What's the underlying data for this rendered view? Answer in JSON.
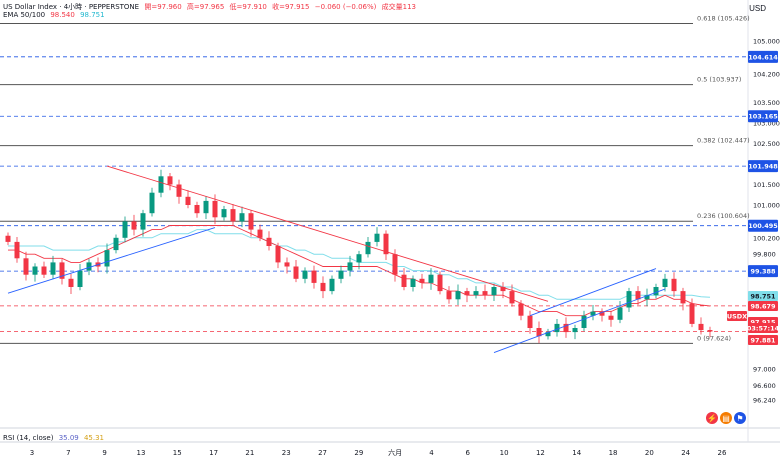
{
  "legend": {
    "symbol": "US Dollar Index · 4小時 · PEPPERSTONE",
    "open": "開=97.960",
    "high": "高=97.965",
    "low": "低=97.910",
    "close": "收=97.915",
    "change": "−0.060 (−0.06%)",
    "volume": "成交量113",
    "ema_label": "EMA 50/100",
    "ema50_value": "98.540",
    "ema100_value": "98.751",
    "rsi_label": "RSI (14, close)",
    "rsi_value1": "35.09",
    "rsi_value2": "45.31"
  },
  "axis": {
    "currency": "USD"
  },
  "colors": {
    "up": "#089981",
    "down": "#f23645",
    "ema50": "#f23645",
    "ema100": "#80deea",
    "trendline_blue": "#2962ff",
    "trendline_red": "#f23645",
    "level_blue": "#1e53e5",
    "level_red": "#f23645",
    "fib": "#555555"
  },
  "icons": [
    "flash-icon",
    "calendar-icon",
    "flag-icon"
  ],
  "chart_data": {
    "type": "candlestick",
    "timeframe": "4h",
    "ylim": [
      96.0,
      106.0
    ],
    "y_ticks": [
      105.0,
      104.2,
      103.5,
      103.0,
      102.5,
      101.5,
      101.0,
      100.2,
      99.8,
      98.2,
      97.0,
      96.6,
      96.24
    ],
    "x_ticks": [
      "3",
      "7",
      "9",
      "13",
      "15",
      "17",
      "21",
      "23",
      "27",
      "29",
      "六月",
      "4",
      "6",
      "10",
      "12",
      "14",
      "18",
      "20",
      "24",
      "26"
    ],
    "fib_levels": [
      {
        "label": "0.618 (105.426)",
        "value": 105.426
      },
      {
        "label": "0.5 (103.937)",
        "value": 103.937
      },
      {
        "label": "0.382 (102.447)",
        "value": 102.447
      },
      {
        "label": "0.236 (100.604)",
        "value": 100.604
      },
      {
        "label": "0 (97.624)",
        "value": 97.624
      }
    ],
    "dashed_levels": [
      {
        "label": "104.614",
        "value": 104.614,
        "color": "blue"
      },
      {
        "label": "103.165",
        "value": 103.165,
        "color": "blue"
      },
      {
        "label": "101.948",
        "value": 101.948,
        "color": "blue"
      },
      {
        "label": "100.495",
        "value": 100.495,
        "color": "blue"
      },
      {
        "label": "99.388",
        "value": 99.388,
        "color": "blue"
      },
      {
        "label": "98.540",
        "value": 98.54,
        "color": "red"
      },
      {
        "label": "97.915",
        "value": 97.915,
        "color": "red"
      }
    ],
    "price_tags": [
      {
        "label": "98.751",
        "value": 98.751,
        "color": "#80deea"
      },
      {
        "label": "98.679",
        "value": 98.679,
        "color": "#f23645"
      },
      {
        "label": "USDX",
        "value": 97.915,
        "color": "#f23645"
      },
      {
        "label": "97.915",
        "value": 97.915,
        "color": "#f23645"
      },
      {
        "label": "03:57:14",
        "value": 97.915,
        "color": "#f23645"
      },
      {
        "label": "97.881",
        "value": 97.881,
        "color": "#f23645"
      }
    ],
    "closes": [
      100.1,
      99.7,
      99.3,
      99.5,
      99.3,
      99.6,
      99.2,
      99.0,
      99.4,
      99.6,
      99.5,
      99.9,
      100.2,
      100.6,
      100.4,
      100.8,
      101.3,
      101.7,
      101.5,
      101.2,
      101.0,
      100.8,
      101.1,
      100.7,
      100.9,
      100.6,
      100.8,
      100.4,
      100.2,
      100.0,
      99.6,
      99.5,
      99.2,
      99.4,
      99.1,
      98.9,
      99.2,
      99.4,
      99.6,
      99.8,
      100.1,
      100.3,
      99.8,
      99.3,
      99.0,
      99.2,
      99.1,
      99.3,
      98.9,
      98.7,
      98.9,
      98.8,
      98.9,
      98.8,
      99.0,
      98.9,
      98.6,
      98.3,
      98.0,
      97.8,
      97.9,
      98.1,
      97.9,
      98.0,
      98.3,
      98.4,
      98.3,
      98.2,
      98.5,
      98.9,
      98.7,
      98.8,
      99.0,
      99.2,
      98.9,
      98.6,
      98.1,
      97.95,
      97.915
    ],
    "ema50": [
      99.9,
      99.9,
      99.8,
      99.8,
      99.7,
      99.7,
      99.7,
      99.6,
      99.6,
      99.7,
      99.8,
      99.9,
      100.0,
      100.1,
      100.2,
      100.3,
      100.4,
      100.4,
      100.5,
      100.5,
      100.5,
      100.5,
      100.5,
      100.5,
      100.5,
      100.5,
      100.4,
      100.3,
      100.2,
      100.1,
      100.0,
      99.9,
      99.8,
      99.7,
      99.6,
      99.5,
      99.5,
      99.5,
      99.5,
      99.5,
      99.5,
      99.5,
      99.4,
      99.3,
      99.2,
      99.2,
      99.1,
      99.1,
      99.0,
      98.9,
      98.9,
      98.8,
      98.8,
      98.8,
      98.8,
      98.8,
      98.7,
      98.6,
      98.5,
      98.4,
      98.4,
      98.4,
      98.3,
      98.3,
      98.3,
      98.4,
      98.4,
      98.4,
      98.5,
      98.6,
      98.6,
      98.7,
      98.7,
      98.8,
      98.7,
      98.7,
      98.6,
      98.56,
      98.54
    ],
    "ema100": [
      100.0,
      100.0,
      100.0,
      100.0,
      100.0,
      99.9,
      99.9,
      99.9,
      99.9,
      99.9,
      100.0,
      100.0,
      100.1,
      100.1,
      100.2,
      100.2,
      100.2,
      100.3,
      100.3,
      100.3,
      100.3,
      100.4,
      100.4,
      100.3,
      100.3,
      100.3,
      100.3,
      100.2,
      100.2,
      100.1,
      100.0,
      100.0,
      99.9,
      99.9,
      99.8,
      99.8,
      99.7,
      99.7,
      99.7,
      99.6,
      99.6,
      99.6,
      99.6,
      99.5,
      99.5,
      99.4,
      99.4,
      99.4,
      99.3,
      99.3,
      99.2,
      99.2,
      99.1,
      99.1,
      99.1,
      99.0,
      99.0,
      98.9,
      98.9,
      98.8,
      98.8,
      98.7,
      98.7,
      98.7,
      98.7,
      98.7,
      98.7,
      98.7,
      98.7,
      98.8,
      98.8,
      98.8,
      98.8,
      98.8,
      98.8,
      98.8,
      98.8,
      98.76,
      98.751
    ],
    "trendlines": [
      {
        "color": "blue",
        "from": {
          "index": 0,
          "value": 98.85
        },
        "to": {
          "index": 23,
          "value": 100.45
        }
      },
      {
        "color": "red",
        "from": {
          "index": 11,
          "value": 101.95
        },
        "to": {
          "index": 60,
          "value": 98.65
        }
      },
      {
        "color": "blue",
        "from": {
          "index": 54,
          "value": 97.4
        },
        "to": {
          "index": 73,
          "value": 98.95
        }
      },
      {
        "color": "blue",
        "from": {
          "index": 58,
          "value": 98.3
        },
        "to": {
          "index": 72,
          "value": 99.45
        }
      }
    ]
  }
}
